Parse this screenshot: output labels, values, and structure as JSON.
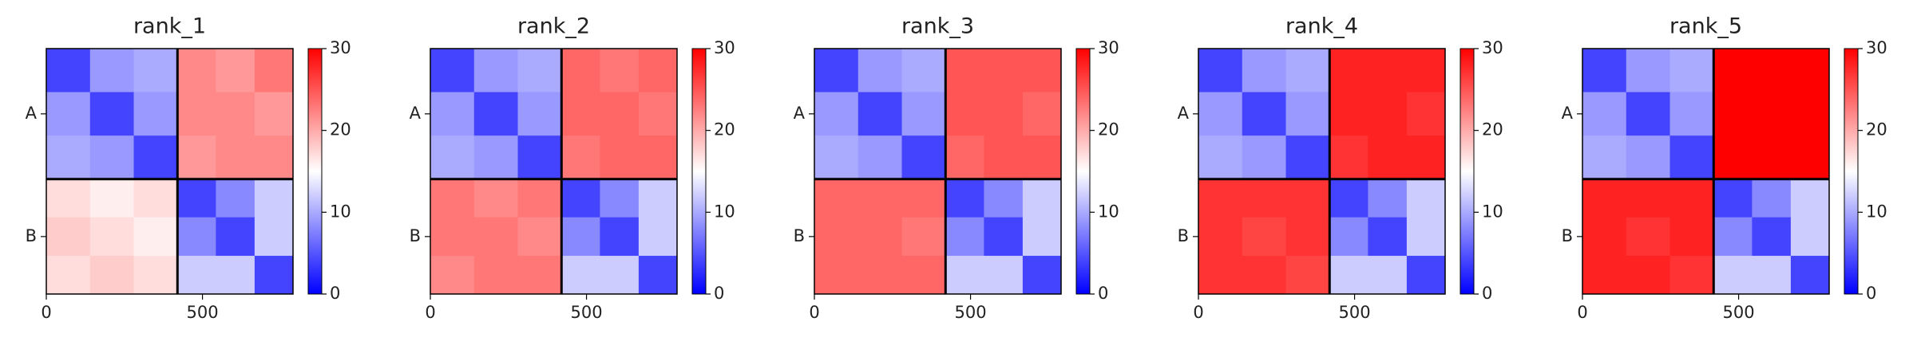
{
  "chart_data": [
    {
      "type": "heatmap",
      "title": "rank_1",
      "colormap": "bwr",
      "clim": [
        0,
        30
      ],
      "cticks": [
        0,
        10,
        20,
        30
      ],
      "xlim": [
        0,
        790
      ],
      "ylim": [
        0,
        790
      ],
      "xticks": [
        0,
        500
      ],
      "yticks": [
        {
          "value": 210,
          "label": "A"
        },
        {
          "value": 605,
          "label": "B"
        }
      ],
      "chain_breaks": [
        420
      ],
      "x_edges": [
        0,
        140,
        280,
        420,
        543,
        667,
        790
      ],
      "y_edges": [
        0,
        140,
        280,
        420,
        543,
        667,
        790
      ],
      "values": [
        [
          4,
          9,
          10,
          22,
          21,
          23
        ],
        [
          9,
          4,
          9,
          22,
          22,
          21
        ],
        [
          10,
          9,
          4,
          21,
          22,
          22
        ],
        [
          17,
          16,
          17,
          4,
          8,
          12
        ],
        [
          18,
          17,
          16,
          8,
          4,
          12
        ],
        [
          17,
          18,
          17,
          12,
          12,
          4
        ]
      ]
    },
    {
      "type": "heatmap",
      "title": "rank_2",
      "colormap": "bwr",
      "clim": [
        0,
        30
      ],
      "cticks": [
        0,
        10,
        20,
        30
      ],
      "xlim": [
        0,
        790
      ],
      "ylim": [
        0,
        790
      ],
      "xticks": [
        0,
        500
      ],
      "yticks": [
        {
          "value": 210,
          "label": "A"
        },
        {
          "value": 605,
          "label": "B"
        }
      ],
      "chain_breaks": [
        420
      ],
      "x_edges": [
        0,
        140,
        280,
        420,
        543,
        667,
        790
      ],
      "y_edges": [
        0,
        140,
        280,
        420,
        543,
        667,
        790
      ],
      "values": [
        [
          4,
          9,
          10,
          24,
          23,
          24
        ],
        [
          9,
          4,
          9,
          24,
          24,
          23
        ],
        [
          10,
          9,
          4,
          23,
          24,
          24
        ],
        [
          23,
          22,
          23,
          4,
          8,
          12
        ],
        [
          23,
          23,
          22,
          8,
          4,
          12
        ],
        [
          22,
          23,
          23,
          12,
          12,
          4
        ]
      ]
    },
    {
      "type": "heatmap",
      "title": "rank_3",
      "colormap": "bwr",
      "clim": [
        0,
        30
      ],
      "cticks": [
        0,
        10,
        20,
        30
      ],
      "xlim": [
        0,
        790
      ],
      "ylim": [
        0,
        790
      ],
      "xticks": [
        0,
        500
      ],
      "yticks": [
        {
          "value": 210,
          "label": "A"
        },
        {
          "value": 605,
          "label": "B"
        }
      ],
      "chain_breaks": [
        420
      ],
      "x_edges": [
        0,
        140,
        280,
        420,
        543,
        667,
        790
      ],
      "y_edges": [
        0,
        140,
        280,
        420,
        543,
        667,
        790
      ],
      "values": [
        [
          4,
          9,
          10,
          25,
          25,
          25
        ],
        [
          9,
          4,
          9,
          25,
          25,
          24
        ],
        [
          10,
          9,
          4,
          24,
          25,
          25
        ],
        [
          24,
          24,
          24,
          4,
          8,
          12
        ],
        [
          24,
          24,
          23,
          8,
          4,
          12
        ],
        [
          24,
          24,
          24,
          12,
          12,
          4
        ]
      ]
    },
    {
      "type": "heatmap",
      "title": "rank_4",
      "colormap": "bwr",
      "clim": [
        0,
        30
      ],
      "cticks": [
        0,
        10,
        20,
        30
      ],
      "xlim": [
        0,
        790
      ],
      "ylim": [
        0,
        790
      ],
      "xticks": [
        0,
        500
      ],
      "yticks": [
        {
          "value": 210,
          "label": "A"
        },
        {
          "value": 605,
          "label": "B"
        }
      ],
      "chain_breaks": [
        420
      ],
      "x_edges": [
        0,
        140,
        280,
        420,
        543,
        667,
        790
      ],
      "y_edges": [
        0,
        140,
        280,
        420,
        543,
        667,
        790
      ],
      "values": [
        [
          4,
          9,
          10,
          28,
          28,
          28
        ],
        [
          9,
          4,
          9,
          28,
          28,
          27
        ],
        [
          10,
          9,
          4,
          27,
          28,
          28
        ],
        [
          27,
          27,
          27,
          4,
          8,
          12
        ],
        [
          27,
          26,
          27,
          8,
          4,
          12
        ],
        [
          27,
          27,
          26,
          12,
          12,
          4
        ]
      ]
    },
    {
      "type": "heatmap",
      "title": "rank_5",
      "colormap": "bwr",
      "clim": [
        0,
        30
      ],
      "cticks": [
        0,
        10,
        20,
        30
      ],
      "xlim": [
        0,
        790
      ],
      "ylim": [
        0,
        790
      ],
      "xticks": [
        0,
        500
      ],
      "yticks": [
        {
          "value": 210,
          "label": "A"
        },
        {
          "value": 605,
          "label": "B"
        }
      ],
      "chain_breaks": [
        420
      ],
      "x_edges": [
        0,
        140,
        280,
        420,
        543,
        667,
        790
      ],
      "y_edges": [
        0,
        140,
        280,
        420,
        543,
        667,
        790
      ],
      "values": [
        [
          4,
          9,
          10,
          30,
          30,
          30
        ],
        [
          9,
          4,
          9,
          30,
          30,
          30
        ],
        [
          10,
          9,
          4,
          30,
          30,
          30
        ],
        [
          28,
          28,
          28,
          4,
          8,
          12
        ],
        [
          28,
          27,
          28,
          8,
          4,
          12
        ],
        [
          28,
          28,
          27,
          12,
          12,
          4
        ]
      ]
    }
  ]
}
